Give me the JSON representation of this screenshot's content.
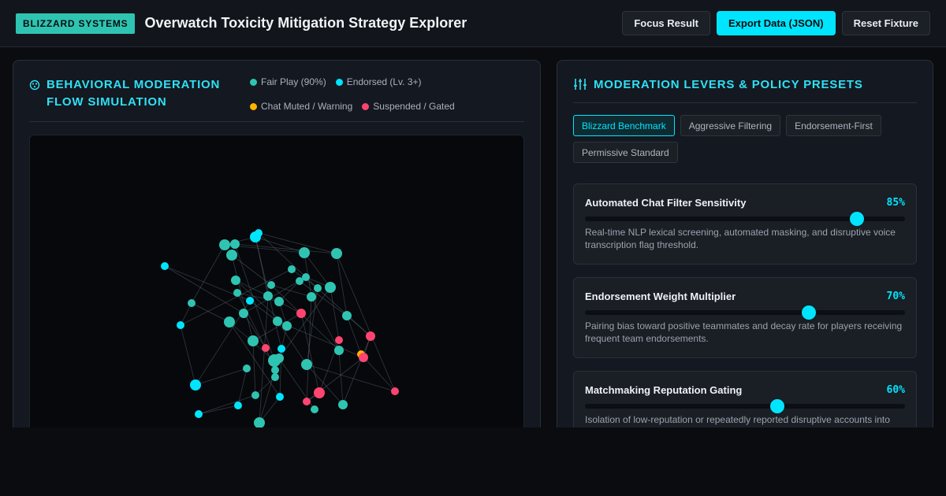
{
  "header": {
    "brand": "BLIZZARD SYSTEMS",
    "title": "Overwatch Toxicity Mitigation Strategy Explorer",
    "buttons": {
      "focus": "Focus Result",
      "export": "Export Data (JSON)",
      "reset": "Reset Fixture"
    }
  },
  "simulation": {
    "title": "BEHAVIORAL MODERATION FLOW SIMULATION",
    "legend": [
      {
        "label": "Fair Play (90%)",
        "color": "#2fc4b2"
      },
      {
        "label": "Endorsed (Lv. 3+)",
        "color": "#00e5ff"
      },
      {
        "label": "Chat Muted / Warning",
        "color": "#ffb300"
      },
      {
        "label": "Suspended / Gated",
        "color": "#ff4470"
      }
    ]
  },
  "levers_panel": {
    "title": "MODERATION LEVERS & POLICY PRESETS",
    "presets": [
      {
        "label": "Blizzard Benchmark",
        "active": true
      },
      {
        "label": "Aggressive Filtering",
        "active": false
      },
      {
        "label": "Endorsement-First",
        "active": false
      },
      {
        "label": "Permissive Standard",
        "active": false
      }
    ],
    "levers": [
      {
        "name": "Automated Chat Filter Sensitivity",
        "value_label": "85%",
        "value": 0.85,
        "description": "Real-time NLP lexical screening, automated masking, and disruptive voice transcription flag threshold."
      },
      {
        "name": "Endorsement Weight Multiplier",
        "value_label": "70%",
        "value": 0.7,
        "description": "Pairing bias toward positive teammates and decay rate for players receiving frequent team endorsements."
      },
      {
        "name": "Matchmaking Reputation Gating",
        "value_label": "60%",
        "value": 0.6,
        "description": "Isolation of low-reputation or repeatedly reported disruptive accounts into"
      }
    ]
  }
}
